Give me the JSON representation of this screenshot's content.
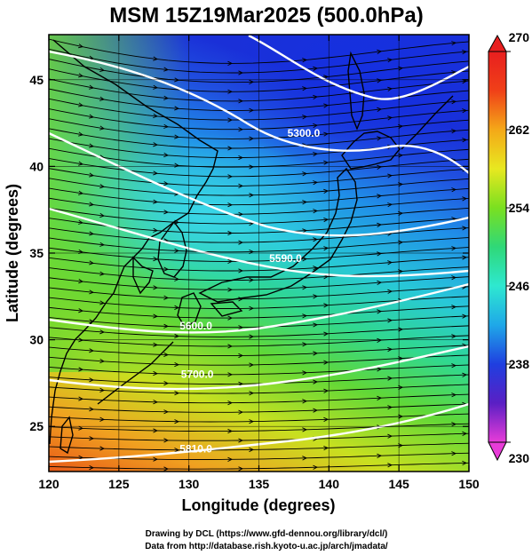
{
  "title": "MSM 15Z19Mar2025 (500.0hPa)",
  "map": {
    "xlabel": "Longitude (degrees)",
    "ylabel": "Latitude  (degrees)",
    "lon_range": [
      120,
      150
    ],
    "lat_range": [
      22.4,
      47.6
    ],
    "lon_ticks": [
      "120",
      "125",
      "130",
      "135",
      "140",
      "145",
      "150"
    ],
    "lat_ticks": [
      "25",
      "30",
      "35",
      "40",
      "45"
    ],
    "lon_tick_values": [
      120,
      125,
      130,
      135,
      140,
      145,
      150
    ],
    "lat_tick_values": [
      25,
      30,
      35,
      40,
      45
    ],
    "shaded_field": "temperature (K)",
    "streamlines": "wind direction",
    "contour_labels": [
      {
        "text": "5300.0",
        "lon": 138.2,
        "lat": 41.7
      },
      {
        "text": "5590.0",
        "lon": 136.9,
        "lat": 34.5
      },
      {
        "text": "5600.0",
        "lon": 130.5,
        "lat": 30.6
      },
      {
        "text": "5700.0",
        "lon": 130.6,
        "lat": 27.8
      },
      {
        "text": "5810.0",
        "lon": 130.5,
        "lat": 23.5
      }
    ],
    "colors": {
      "contour": "#ffffff",
      "coast": "#000000",
      "streamline": "#000000"
    }
  },
  "colorbar": {
    "min": 230,
    "max": 270,
    "ticks": [
      "270",
      "262",
      "254",
      "246",
      "238",
      "230"
    ],
    "tick_values": [
      270,
      262,
      254,
      246,
      238,
      230
    ],
    "colors": [
      "#e83cd8",
      "#5a1fc4",
      "#1f3fe0",
      "#1fa8e8",
      "#2ee8d0",
      "#2fd878",
      "#7ae020",
      "#e8e820",
      "#f4a818",
      "#f04018",
      "#e81f1f"
    ],
    "extend": "both"
  },
  "credits": {
    "line1": "Drawing by DCL (https://www.gfd-dennou.org/library/dcl/)",
    "line2": "Data from http://database.rish.kyoto-u.ac.jp/arch/jmadata/"
  }
}
